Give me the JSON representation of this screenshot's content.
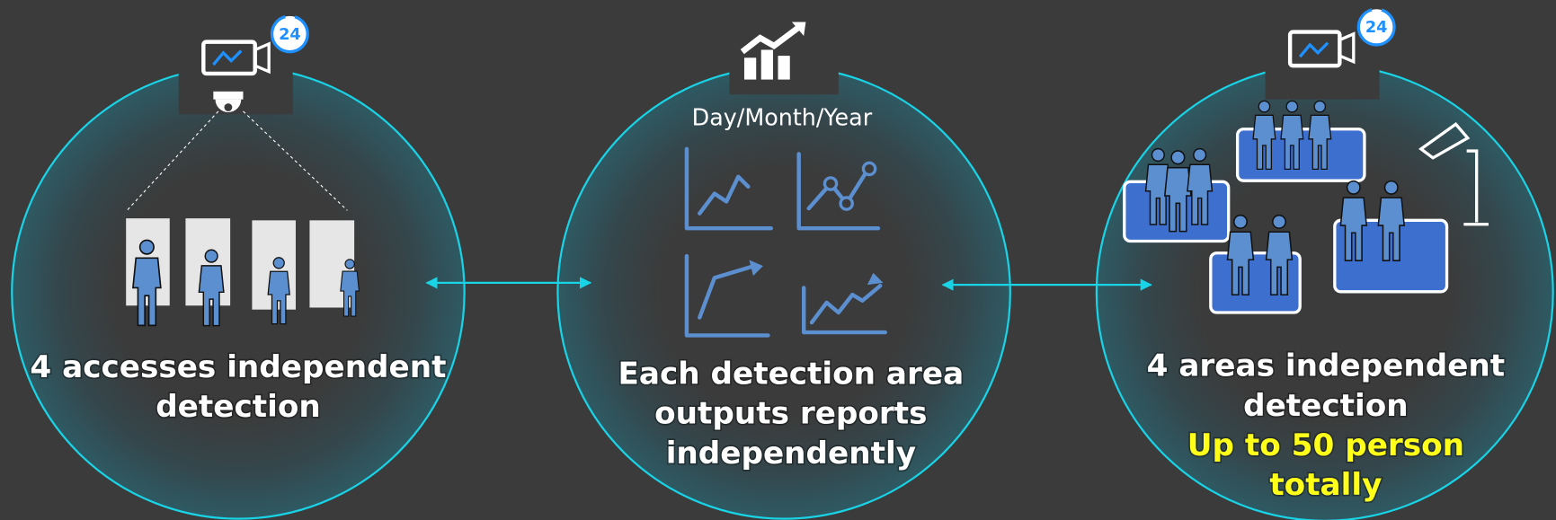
{
  "panels": [
    {
      "badge": "24",
      "title_lines": [
        "4 accesses independent",
        "detection"
      ]
    },
    {
      "subtitle": "Day/Month/Year",
      "title_lines": [
        "Each detection area",
        "outputs reports",
        "independently"
      ]
    },
    {
      "badge": "24",
      "title_lines": [
        "4 areas independent",
        "detection"
      ],
      "highlight_lines": [
        "Up to 50 person",
        "totally"
      ]
    }
  ]
}
